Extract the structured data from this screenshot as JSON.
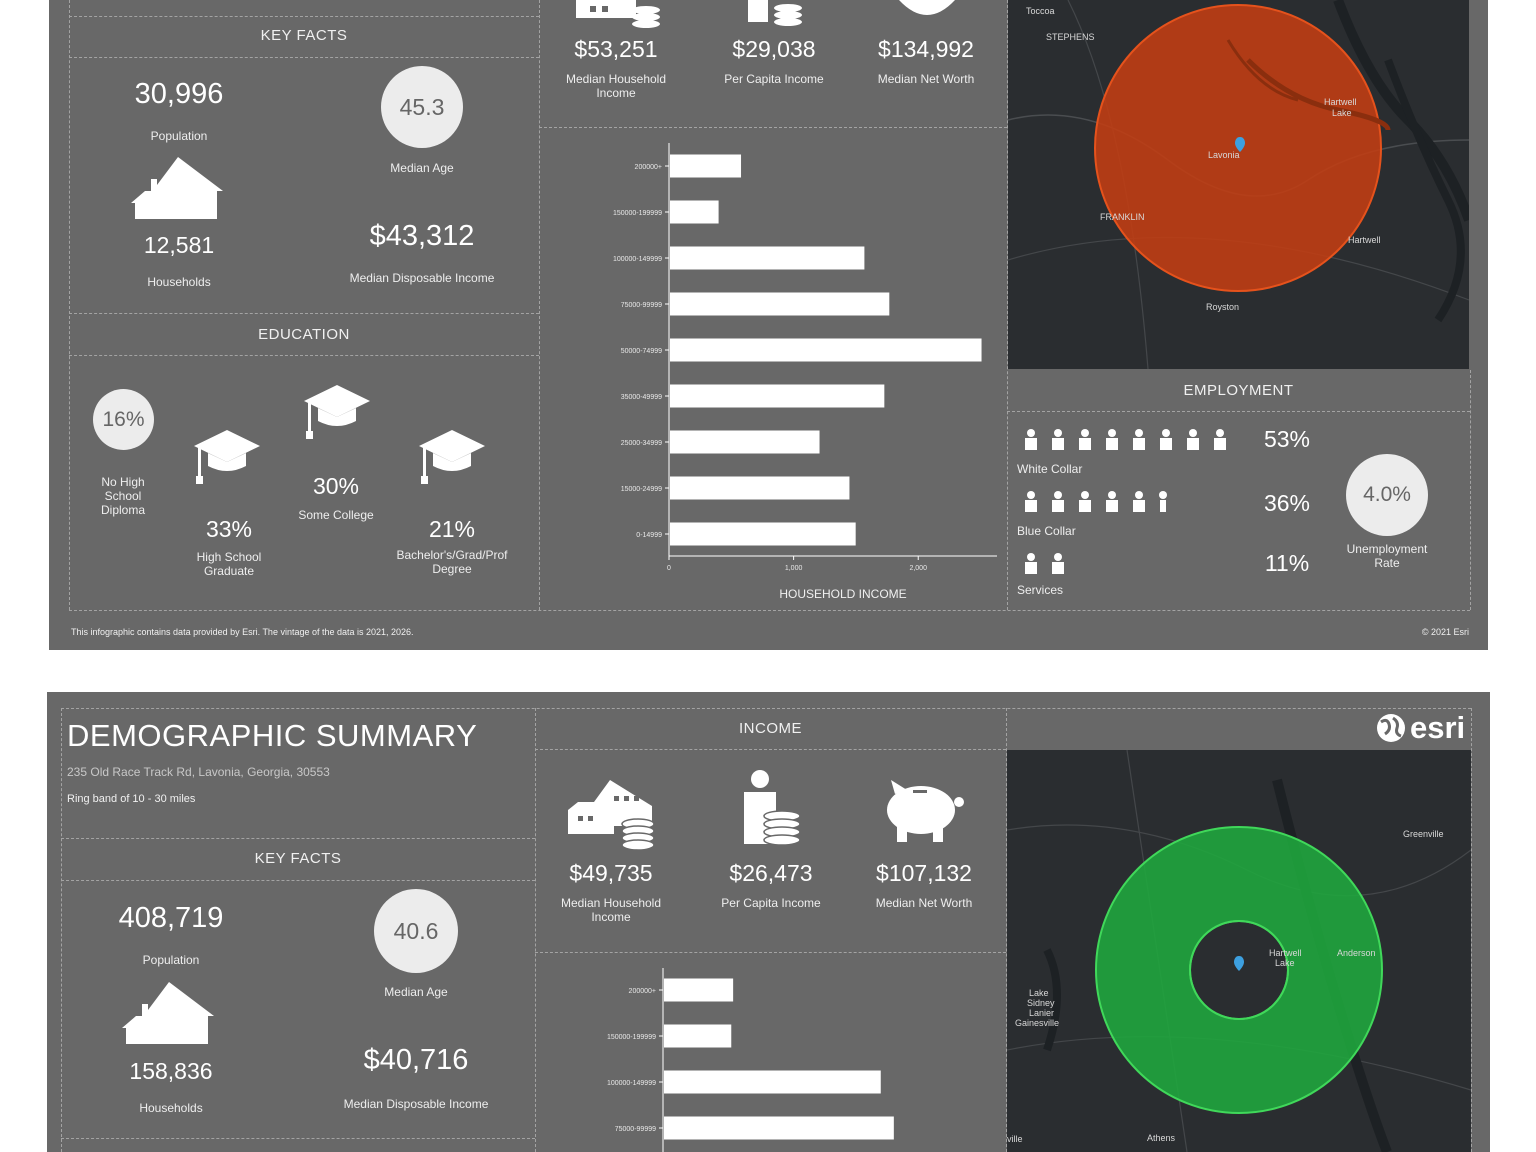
{
  "top": {
    "key_facts_header": "KEY FACTS",
    "population": {
      "value": "30,996",
      "label": "Population"
    },
    "median_age": {
      "value": "45.3",
      "label": "Median Age"
    },
    "households": {
      "value": "12,581",
      "label": "Households"
    },
    "median_disposable_income": {
      "value": "$43,312",
      "label": "Median Disposable Income"
    },
    "education_header": "EDUCATION",
    "education": {
      "no_hs": {
        "value": "16%",
        "label_lines": [
          "No High",
          "School",
          "Diploma"
        ]
      },
      "hs_grad": {
        "value": "33%",
        "label_lines": [
          "High School",
          "Graduate"
        ]
      },
      "some_college": {
        "value": "30%",
        "label": "Some College"
      },
      "bachelors": {
        "value": "21%",
        "label_lines": [
          "Bachelor's/Grad/Prof",
          "Degree"
        ]
      }
    },
    "income": {
      "median_household": {
        "value": "$53,251",
        "label_lines": [
          "Median Household",
          "Income"
        ]
      },
      "per_capita": {
        "value": "$29,038",
        "label": "Per Capita Income"
      },
      "net_worth": {
        "value": "$134,992",
        "label": "Median Net Worth"
      }
    },
    "employment_header": "EMPLOYMENT",
    "employment": {
      "white_collar": {
        "value": "53%",
        "label": "White Collar"
      },
      "blue_collar": {
        "value": "36%",
        "label": "Blue Collar"
      },
      "services": {
        "value": "11%",
        "label": "Services"
      },
      "unemployment": {
        "value": "4.0%",
        "label_lines": [
          "Unemployment",
          "Rate"
        ]
      }
    },
    "map_labels": {
      "toccoa": "Toccoa",
      "stephens": "STEPHENS",
      "hartwell_lake": "Hartwell",
      "hartwell_lake2": "Lake",
      "lavonia": "Lavonia",
      "franklin": "FRANKLIN",
      "hartwell": "Hartwell",
      "royston": "Royston"
    },
    "footer_left": "This infographic contains data provided by Esri. The vintage of the data is 2021, 2026.",
    "footer_right": "© 2021 Esri"
  },
  "bottom": {
    "title": "DEMOGRAPHIC SUMMARY",
    "address": "235 Old Race Track Rd, Lavonia, Georgia, 30553",
    "ring": "Ring band of 10 - 30 miles",
    "income_header": "INCOME",
    "logo": "esri",
    "key_facts_header": "KEY FACTS",
    "population": {
      "value": "408,719",
      "label": "Population"
    },
    "median_age": {
      "value": "40.6",
      "label": "Median Age"
    },
    "households": {
      "value": "158,836",
      "label": "Households"
    },
    "median_disposable_income": {
      "value": "$40,716",
      "label": "Median Disposable Income"
    },
    "income": {
      "median_household": {
        "value": "$49,735",
        "label_lines": [
          "Median Household",
          "Income"
        ]
      },
      "per_capita": {
        "value": "$26,473",
        "label": "Per Capita Income"
      },
      "net_worth": {
        "value": "$107,132",
        "label": "Median Net Worth"
      }
    },
    "map_labels": {
      "greenville": "Greenville",
      "anderson": "Anderson",
      "hartwell": "Hartwell",
      "lake": "Lake",
      "lake_sidney": "Lake",
      "lanier": "Sidney",
      "lanier2": "Lanier",
      "gainesville": "Gainesville",
      "athens": "Athens",
      "ville": "ville"
    }
  },
  "chart_data": [
    {
      "type": "bar",
      "orientation": "horizontal",
      "title": "HOUSEHOLD INCOME",
      "categories": [
        "200000+",
        "150000-199999",
        "100000-149999",
        "75000-99999",
        "50000-74999",
        "35000-49999",
        "25000-34999",
        "15000-24999",
        "0-14999"
      ],
      "values": [
        570,
        390,
        1560,
        1760,
        2500,
        1720,
        1200,
        1440,
        1490
      ],
      "xlim": [
        0,
        2600
      ],
      "xticks": [
        0,
        1000,
        2000
      ],
      "xtick_labels": [
        "0",
        "1,000",
        "2,000"
      ]
    },
    {
      "type": "bar",
      "orientation": "horizontal",
      "title": "",
      "categories": [
        "200000+",
        "150000-199999",
        "100000-149999",
        "75000-99999"
      ],
      "values": [
        7400,
        7200,
        23200,
        24600
      ],
      "xlim": [
        0,
        35000
      ]
    }
  ]
}
